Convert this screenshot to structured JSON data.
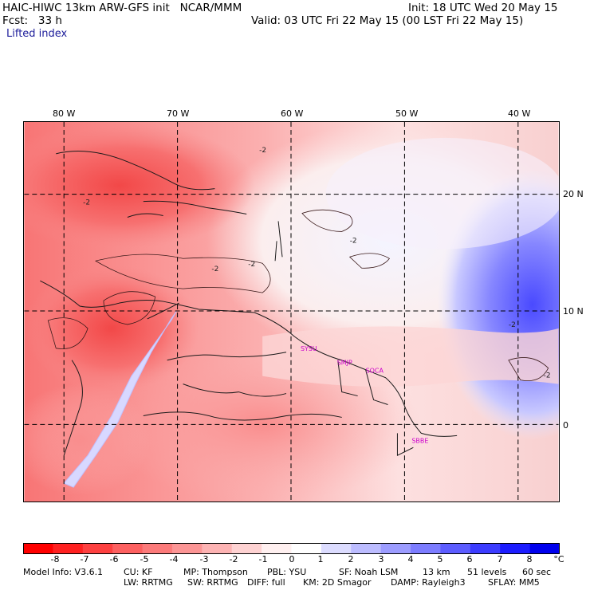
{
  "header": {
    "left_line1": "HAIC-HIWC 13km ARW-GFS init   NCAR/MMM",
    "left_line2": "Fcst:   33 h",
    "right_line1": "Init: 18 UTC Wed 20 May 15",
    "right_line2": "Valid: 03 UTC Fri 22 May 15 (00 LST Fri 22 May 15)",
    "field_name": "Lifted index"
  },
  "map": {
    "longitude_labels": [
      "80 W",
      "70 W",
      "60 W",
      "50 W",
      "40 W"
    ],
    "latitude_labels": [
      "20 N",
      "10 N",
      "0"
    ],
    "contour_labels": [
      "-2",
      "-2",
      "-2",
      "-2",
      "-2",
      "-2",
      "-2"
    ],
    "stations": [
      "SYSU",
      "SMJP",
      "SOCA",
      "SBBE"
    ]
  },
  "colorbar": {
    "labels": [
      "-8",
      "-7",
      "-6",
      "-5",
      "-4",
      "-3",
      "-2",
      "-1",
      "0",
      "1",
      "2",
      "3",
      "4",
      "5",
      "6",
      "7",
      "8"
    ],
    "unit": "°C",
    "colors": [
      "#ff0000",
      "#ff2020",
      "#fe4040",
      "#fd6060",
      "#fc7a7a",
      "#fc9595",
      "#fdb3b3",
      "#fed2d2",
      "#fff0f0",
      "#ffffff",
      "#dcdcff",
      "#bcbcff",
      "#9c9cff",
      "#7c7cff",
      "#5c5cff",
      "#3c3cff",
      "#1c1cff",
      "#0000ee"
    ]
  },
  "footer": {
    "line1": [
      "Model Info: V3.6.1",
      "CU: KF",
      "MP: Thompson",
      "PBL: YSU",
      "SF: Noah LSM",
      "13 km",
      "51 levels",
      "60 sec"
    ],
    "line2": [
      "LW: RRTMG",
      "SW: RRTMG",
      "DIFF: full",
      "KM: 2D Smagor",
      "DAMP: Rayleigh3",
      "SFLAY: MM5"
    ]
  }
}
